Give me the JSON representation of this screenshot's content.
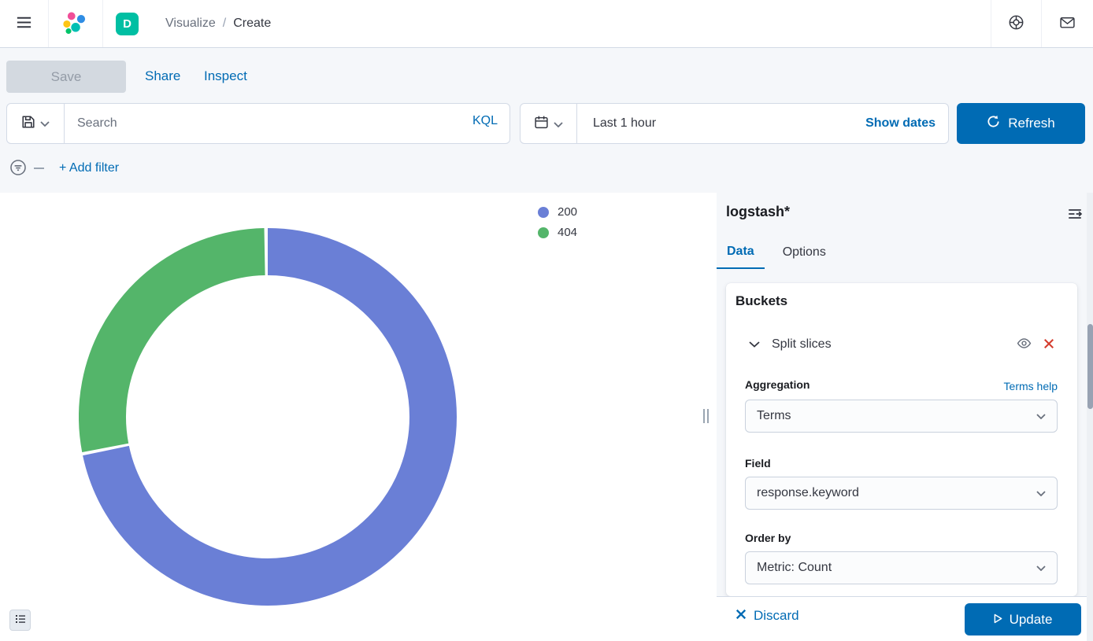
{
  "colors": {
    "primary": "#006bb4",
    "danger": "#d43d2e",
    "space_badge": "#00bfa3",
    "slice_200": "#6a7fd6",
    "slice_404": "#54b56a"
  },
  "header": {
    "breadcrumb_section": "Visualize",
    "breadcrumb_separator": "/",
    "breadcrumb_page": "Create",
    "space_initial": "D"
  },
  "toolbar": {
    "save_label": "Save",
    "share_label": "Share",
    "inspect_label": "Inspect"
  },
  "query_bar": {
    "search_placeholder": "Search",
    "kql_label": "KQL"
  },
  "time_picker": {
    "range_label": "Last 1 hour",
    "show_dates_label": "Show dates",
    "refresh_label": "Refresh"
  },
  "filter_bar": {
    "add_filter_label": "+ Add filter"
  },
  "chart_data": {
    "type": "pie",
    "subtype": "donut",
    "title": "",
    "legend_position": "top-right",
    "slices": [
      {
        "label": "200",
        "pct": 72,
        "color": "#6a7fd6"
      },
      {
        "label": "404",
        "pct": 28,
        "color": "#54b56a"
      }
    ]
  },
  "editor": {
    "index_pattern": "logstash*",
    "tabs": [
      {
        "label": "Data"
      },
      {
        "label": "Options"
      }
    ],
    "buckets_title": "Buckets",
    "split_slices_label": "Split slices",
    "aggregation_label": "Aggregation",
    "terms_help_label": "Terms help",
    "aggregation_value": "Terms",
    "field_label": "Field",
    "field_value": "response.keyword",
    "order_by_label": "Order by",
    "order_by_value": "Metric: Count",
    "discard_label": "Discard",
    "update_label": "Update"
  }
}
